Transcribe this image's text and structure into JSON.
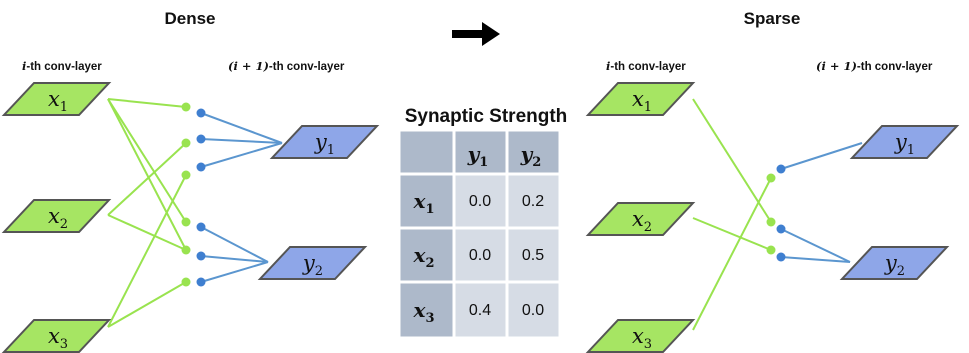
{
  "colors": {
    "input_node": "#a6e563",
    "output_node": "#8ea6e8",
    "input_edge": "#99e34f",
    "output_edge": "#5b96cf",
    "output_dot": "#3f7fd0",
    "table_header": "#adb9ca",
    "table_cell": "#d6dce5",
    "node_stroke": "#555555"
  },
  "dense": {
    "title": "Dense",
    "left_layer": {
      "prefix": "i",
      "suffix": "-th conv-layer"
    },
    "right_layer": {
      "prefix": "(i + 1)",
      "suffix": "-th conv-layer"
    },
    "inputs": [
      {
        "base": "x",
        "sub": "1"
      },
      {
        "base": "x",
        "sub": "2"
      },
      {
        "base": "x",
        "sub": "3"
      }
    ],
    "outputs": [
      {
        "base": "y",
        "sub": "1"
      },
      {
        "base": "y",
        "sub": "2"
      }
    ]
  },
  "arrow_icon": "right-arrow",
  "sparse": {
    "title": "Sparse",
    "left_layer": {
      "prefix": "i",
      "suffix": "-th conv-layer"
    },
    "right_layer": {
      "prefix": "(i + 1)",
      "suffix": "-th conv-layer"
    },
    "inputs": [
      {
        "base": "x",
        "sub": "1"
      },
      {
        "base": "x",
        "sub": "2"
      },
      {
        "base": "x",
        "sub": "3"
      }
    ],
    "outputs": [
      {
        "base": "y",
        "sub": "1"
      },
      {
        "base": "y",
        "sub": "2"
      }
    ]
  },
  "table": {
    "title": "Synaptic Strength",
    "columns": [
      {
        "base": "y",
        "sub": "1"
      },
      {
        "base": "y",
        "sub": "2"
      }
    ],
    "rows": [
      {
        "label": {
          "base": "x",
          "sub": "1"
        },
        "values": [
          "0.0",
          "0.2"
        ]
      },
      {
        "label": {
          "base": "x",
          "sub": "2"
        },
        "values": [
          "0.0",
          "0.5"
        ]
      },
      {
        "label": {
          "base": "x",
          "sub": "3"
        },
        "values": [
          "0.4",
          "0.0"
        ]
      }
    ]
  }
}
